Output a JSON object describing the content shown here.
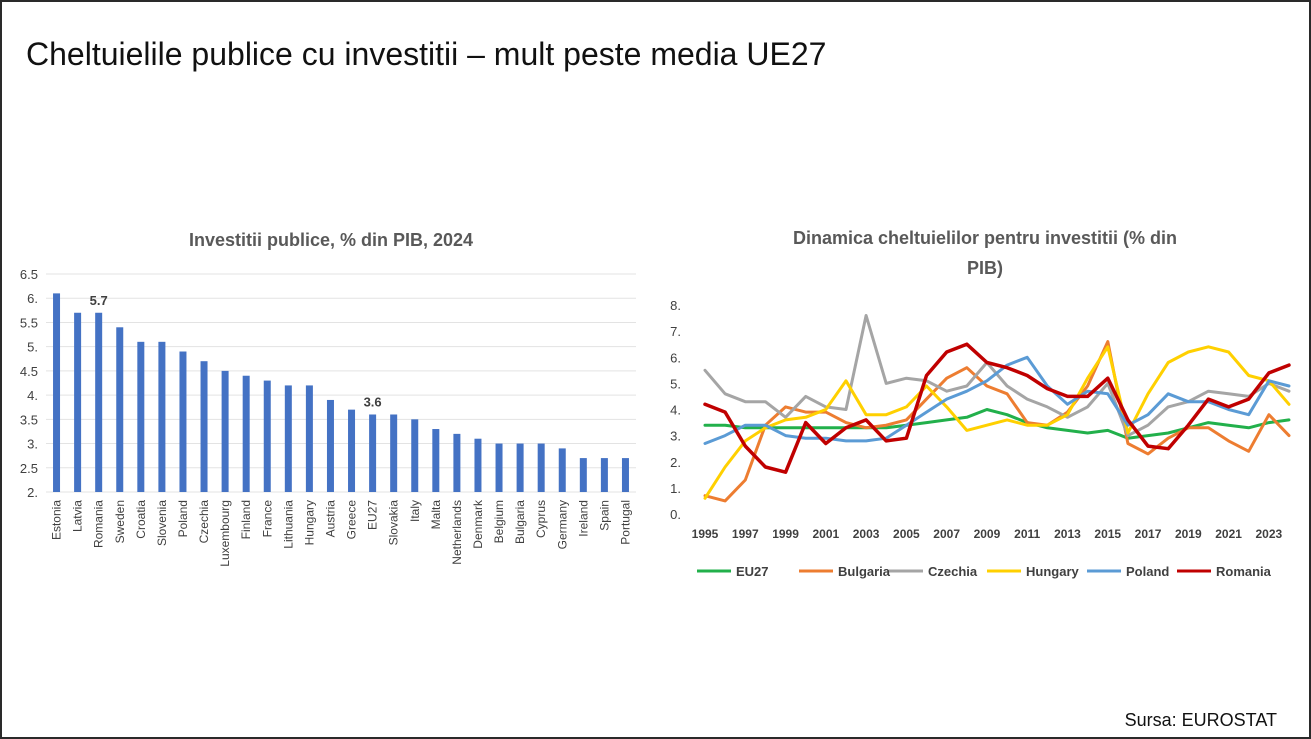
{
  "slide": {
    "title": "Cheltuielile publice cu investitii – mult peste media UE27",
    "source": "Sursa: EUROSTAT"
  },
  "chart_data": [
    {
      "type": "bar",
      "title": "Investitii publice, % din PIB, 2024",
      "xlabel": "",
      "ylabel": "",
      "ylim": [
        2,
        6.5
      ],
      "yticks": [
        "2.",
        "2.5",
        "3.",
        "3.5",
        "4.",
        "4.5",
        "5.",
        "5.5",
        "6.",
        "6.5"
      ],
      "grid": true,
      "color": "#4472c4",
      "categories": [
        "Estonia",
        "Latvia",
        "Romania",
        "Sweden",
        "Croatia",
        "Slovenia",
        "Poland",
        "Czechia",
        "Luxembourg",
        "Finland",
        "France",
        "Lithuania",
        "Hungary",
        "Austria",
        "Greece",
        "EU27",
        "Slovakia",
        "Italy",
        "Malta",
        "Netherlands",
        "Denmark",
        "Belgium",
        "Bulgaria",
        "Cyprus",
        "Germany",
        "Ireland",
        "Spain",
        "Portugal"
      ],
      "values": [
        6.1,
        5.7,
        5.7,
        5.4,
        5.1,
        5.1,
        4.9,
        4.7,
        4.5,
        4.4,
        4.3,
        4.2,
        4.2,
        3.9,
        3.7,
        3.6,
        3.6,
        3.5,
        3.3,
        3.2,
        3.1,
        3.0,
        3.0,
        3.0,
        2.9,
        2.7,
        2.7,
        2.7
      ],
      "data_labels": [
        {
          "category": "Romania",
          "text": "5.7"
        },
        {
          "category": "EU27",
          "text": "3.6"
        }
      ]
    },
    {
      "type": "line",
      "title": "Dinamica cheltuielilor pentru investitii (% din PIB)",
      "title_lines": [
        "Dinamica cheltuielilor pentru investitii (% din",
        "PIB)"
      ],
      "xlabel": "",
      "ylabel": "",
      "ylim": [
        0,
        8
      ],
      "yticks": [
        "0.",
        "1.",
        "2.",
        "3.",
        "4.",
        "5.",
        "6.",
        "7.",
        "8."
      ],
      "xticks": [
        "1995",
        "1997",
        "1999",
        "2001",
        "2003",
        "2005",
        "2007",
        "2009",
        "2011",
        "2013",
        "2015",
        "2017",
        "2019",
        "2021",
        "2023"
      ],
      "grid": false,
      "legend": "bottom",
      "x": [
        1995,
        1996,
        1997,
        1998,
        1999,
        2000,
        2001,
        2002,
        2003,
        2004,
        2005,
        2006,
        2007,
        2008,
        2009,
        2010,
        2011,
        2012,
        2013,
        2014,
        2015,
        2016,
        2017,
        2018,
        2019,
        2020,
        2021,
        2022,
        2023,
        2024
      ],
      "series": [
        {
          "name": "EU27",
          "color": "#22b04b",
          "values": [
            3.4,
            3.4,
            3.3,
            3.3,
            3.3,
            3.3,
            3.3,
            3.3,
            3.3,
            3.3,
            3.4,
            3.5,
            3.6,
            3.7,
            4.0,
            3.8,
            3.5,
            3.3,
            3.2,
            3.1,
            3.2,
            2.9,
            3.0,
            3.1,
            3.3,
            3.5,
            3.4,
            3.3,
            3.5,
            3.6
          ]
        },
        {
          "name": "Bulgaria",
          "color": "#ed7d31",
          "values": [
            0.7,
            0.5,
            1.3,
            3.4,
            4.1,
            3.9,
            3.9,
            3.5,
            3.3,
            3.4,
            3.6,
            4.4,
            5.2,
            5.6,
            4.9,
            4.6,
            3.5,
            3.4,
            3.9,
            4.9,
            6.6,
            2.7,
            2.3,
            2.9,
            3.3,
            3.3,
            2.8,
            2.4,
            3.8,
            3.0
          ]
        },
        {
          "name": "Czechia",
          "color": "#a5a5a5",
          "values": [
            5.5,
            4.6,
            4.3,
            4.3,
            3.7,
            4.5,
            4.1,
            4.0,
            7.6,
            5.0,
            5.2,
            5.1,
            4.7,
            4.9,
            5.8,
            4.9,
            4.4,
            4.1,
            3.7,
            4.1,
            5.0,
            3.0,
            3.4,
            4.1,
            4.3,
            4.7,
            4.6,
            4.5,
            5.0,
            4.7
          ]
        },
        {
          "name": "Hungary",
          "color": "#ffd000",
          "values": [
            0.6,
            1.8,
            2.8,
            3.3,
            3.6,
            3.7,
            4.0,
            5.1,
            3.8,
            3.8,
            4.1,
            4.9,
            4.1,
            3.2,
            3.4,
            3.6,
            3.4,
            3.4,
            3.8,
            5.2,
            6.4,
            3.1,
            4.6,
            5.8,
            6.2,
            6.4,
            6.2,
            5.3,
            5.1,
            4.2
          ]
        },
        {
          "name": "Poland",
          "color": "#5b9bd5",
          "values": [
            2.7,
            3.0,
            3.4,
            3.4,
            3.0,
            2.9,
            2.9,
            2.8,
            2.8,
            2.9,
            3.4,
            3.9,
            4.4,
            4.7,
            5.1,
            5.7,
            6.0,
            4.9,
            4.2,
            4.7,
            4.6,
            3.4,
            3.8,
            4.6,
            4.3,
            4.3,
            4.0,
            3.8,
            5.1,
            4.9
          ]
        },
        {
          "name": "Romania",
          "color": "#c00000",
          "values": [
            4.2,
            3.9,
            2.6,
            1.8,
            1.6,
            3.5,
            2.7,
            3.3,
            3.6,
            2.8,
            2.9,
            5.3,
            6.2,
            6.5,
            5.8,
            5.6,
            5.3,
            4.8,
            4.5,
            4.5,
            5.2,
            3.6,
            2.6,
            2.5,
            3.4,
            4.4,
            4.1,
            4.4,
            5.4,
            5.7
          ]
        }
      ]
    }
  ]
}
